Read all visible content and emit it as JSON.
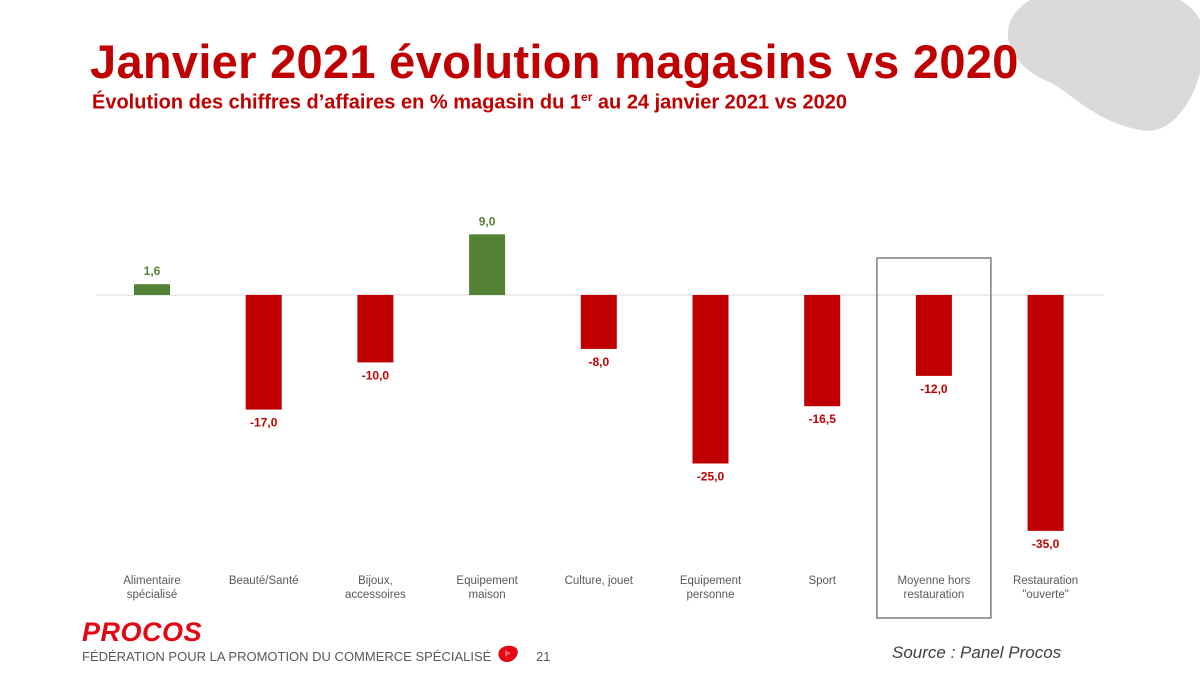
{
  "slide": {
    "title": "Janvier 2021 évolution magasins vs 2020",
    "subtitle_main": "Évolution des chiffres d’affaires en % magasin du 1",
    "subtitle_sup": "er",
    "subtitle_end": " au 24 janvier 2021 vs 2020"
  },
  "footer": {
    "logo": "PROCOS",
    "tagline": "FÉDÉRATION POUR LA PROMOTION DU COMMERCE SPÉCIALISÉ",
    "page_number": "21",
    "source": "Source : Panel Procos"
  },
  "colors": {
    "positive": "#548235",
    "negative": "#c00000",
    "title": "#c00000"
  },
  "chart_data": {
    "type": "bar",
    "categories": [
      [
        "Alimentaire",
        "spécialisé"
      ],
      [
        "Beauté/Santé"
      ],
      [
        "Bijoux,",
        "accessoires"
      ],
      [
        "Equipement",
        "maison"
      ],
      [
        "Culture, jouet"
      ],
      [
        "Equipement",
        "personne"
      ],
      [
        "Sport"
      ],
      [
        "Moyenne hors",
        "restauration"
      ],
      [
        "Restauration",
        "\"ouverte\""
      ]
    ],
    "values": [
      1.6,
      -17.0,
      -10.0,
      9.0,
      -8.0,
      -25.0,
      -16.5,
      -12.0,
      -35.0
    ],
    "value_labels": [
      "1,6",
      "-17,0",
      "-10,0",
      "9,0",
      "-8,0",
      "-25,0",
      "-16,5",
      "-12,0",
      "-35,0"
    ],
    "highlighted_category": "Moyenne hors restauration",
    "ylim": [
      -35,
      9
    ],
    "grid": false,
    "legend": "none",
    "xlabel": "",
    "ylabel": ""
  }
}
